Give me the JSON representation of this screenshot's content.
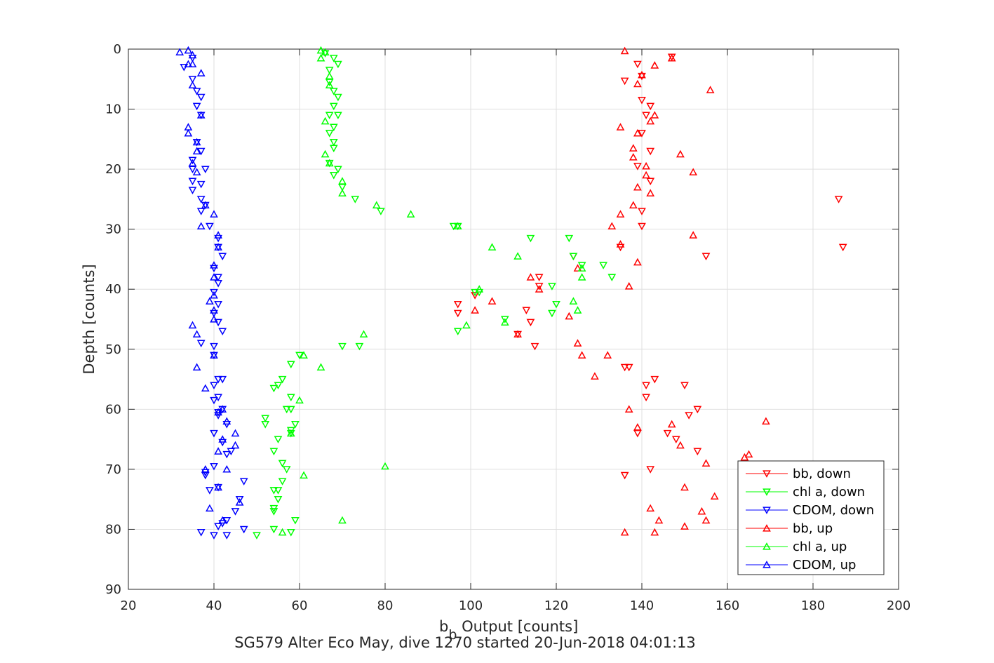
{
  "chart_data": {
    "type": "scatter",
    "xlabel_main": "b",
    "xlabel_sub": "b",
    "xlabel_rest": " Output [counts]",
    "ylabel": "Depth [counts]",
    "caption": "SG579 Alter Eco May, dive 1270 started 20-Jun-2018 04:01:13",
    "xlim": [
      20,
      200
    ],
    "ylim": [
      0,
      90
    ],
    "y_reversed": true,
    "xticks": [
      20,
      40,
      60,
      80,
      100,
      120,
      140,
      160,
      180,
      200
    ],
    "yticks": [
      0,
      10,
      20,
      30,
      40,
      50,
      60,
      70,
      80,
      90
    ],
    "grid": true,
    "legend_position": "bottom-right",
    "series": [
      {
        "name": "bb, down",
        "color": "#ff0000",
        "marker": "triangle-down",
        "points": [
          [
            147,
            1.3
          ],
          [
            136,
            5.3
          ],
          [
            140,
            4.5
          ],
          [
            139,
            2.5
          ],
          [
            140,
            8.5
          ],
          [
            142,
            9.5
          ],
          [
            141,
            11
          ],
          [
            140,
            14
          ],
          [
            142,
            17
          ],
          [
            139,
            19.5
          ],
          [
            142,
            22
          ],
          [
            140,
            27
          ],
          [
            140,
            29.5
          ],
          [
            186,
            25
          ],
          [
            187,
            33
          ],
          [
            155,
            34.5
          ],
          [
            135,
            33
          ],
          [
            124,
            34.5
          ],
          [
            116,
            38
          ],
          [
            116,
            39.5
          ],
          [
            113,
            43.5
          ],
          [
            114,
            45.5
          ],
          [
            111,
            47.5
          ],
          [
            115,
            49.5
          ],
          [
            97,
            42.5
          ],
          [
            97,
            44
          ],
          [
            101,
            41
          ],
          [
            137,
            53
          ],
          [
            136,
            53
          ],
          [
            141,
            56
          ],
          [
            141,
            58
          ],
          [
            139,
            64
          ],
          [
            142,
            70
          ],
          [
            136,
            71
          ],
          [
            146,
            64
          ],
          [
            148,
            65
          ],
          [
            153,
            67
          ],
          [
            151,
            61
          ],
          [
            153,
            60
          ],
          [
            150,
            56
          ],
          [
            143,
            55
          ]
        ]
      },
      {
        "name": "chl a, down",
        "color": "#00ff00",
        "marker": "triangle-down",
        "points": [
          [
            66,
            0.7
          ],
          [
            68,
            1.5
          ],
          [
            69,
            2.5
          ],
          [
            67,
            3.5
          ],
          [
            67,
            5.5
          ],
          [
            68,
            7
          ],
          [
            69,
            8
          ],
          [
            68,
            9.5
          ],
          [
            69,
            11
          ],
          [
            67,
            11
          ],
          [
            68,
            13
          ],
          [
            67,
            14
          ],
          [
            68,
            15.5
          ],
          [
            68,
            16.5
          ],
          [
            67,
            19
          ],
          [
            69,
            20
          ],
          [
            68,
            21
          ],
          [
            70,
            23
          ],
          [
            73,
            25
          ],
          [
            79,
            27
          ],
          [
            97,
            29.5
          ],
          [
            96,
            29.5
          ],
          [
            114,
            31.5
          ],
          [
            123,
            31.5
          ],
          [
            124,
            34.5
          ],
          [
            126,
            36
          ],
          [
            131,
            36
          ],
          [
            133,
            38
          ],
          [
            119,
            39.5
          ],
          [
            120,
            42.5
          ],
          [
            119,
            44
          ],
          [
            108,
            45
          ],
          [
            102,
            40.5
          ],
          [
            101,
            40.5
          ],
          [
            97,
            47
          ],
          [
            70,
            49.5
          ],
          [
            74,
            49.5
          ],
          [
            60,
            51
          ],
          [
            58,
            52.5
          ],
          [
            56,
            55
          ],
          [
            55,
            56
          ],
          [
            54,
            56.5
          ],
          [
            58,
            58
          ],
          [
            57,
            60
          ],
          [
            58,
            60
          ],
          [
            59,
            62.5
          ],
          [
            58,
            64
          ],
          [
            58,
            63.5
          ],
          [
            54,
            67
          ],
          [
            55,
            65
          ],
          [
            56,
            69
          ],
          [
            57,
            70
          ],
          [
            56,
            72
          ],
          [
            55,
            73.5
          ],
          [
            54,
            73.5
          ],
          [
            55,
            75
          ],
          [
            54,
            76.5
          ],
          [
            54,
            77
          ],
          [
            59,
            78.5
          ],
          [
            54,
            80
          ],
          [
            58,
            80.5
          ],
          [
            50,
            81
          ],
          [
            52,
            61.5
          ],
          [
            52,
            62.5
          ]
        ]
      },
      {
        "name": "CDOM, down",
        "color": "#0000ff",
        "marker": "triangle-down",
        "points": [
          [
            35,
            1.5
          ],
          [
            33,
            3
          ],
          [
            35,
            5
          ],
          [
            36,
            7
          ],
          [
            37,
            8
          ],
          [
            36,
            9.5
          ],
          [
            37,
            11
          ],
          [
            36,
            15.5
          ],
          [
            37,
            17
          ],
          [
            35,
            18.5
          ],
          [
            35,
            20
          ],
          [
            38,
            20
          ],
          [
            35,
            22
          ],
          [
            37,
            22.5
          ],
          [
            35,
            23.5
          ],
          [
            37,
            25
          ],
          [
            38,
            26
          ],
          [
            37,
            27
          ],
          [
            39,
            29.5
          ],
          [
            41,
            31.5
          ],
          [
            41,
            33
          ],
          [
            42,
            34.5
          ],
          [
            40,
            36.5
          ],
          [
            41,
            38
          ],
          [
            41,
            39
          ],
          [
            40,
            40.5
          ],
          [
            41,
            42.5
          ],
          [
            40,
            44
          ],
          [
            41,
            45.5
          ],
          [
            42,
            47
          ],
          [
            37,
            49
          ],
          [
            40,
            49.5
          ],
          [
            40,
            51
          ],
          [
            41,
            55
          ],
          [
            42,
            55
          ],
          [
            40,
            56
          ],
          [
            41,
            58
          ],
          [
            40,
            58.5
          ],
          [
            42,
            60
          ],
          [
            41,
            60.5
          ],
          [
            41,
            61
          ],
          [
            43,
            62.5
          ],
          [
            40,
            64
          ],
          [
            42,
            65.5
          ],
          [
            44,
            67
          ],
          [
            43,
            67.5
          ],
          [
            40,
            69.5
          ],
          [
            38,
            70.5
          ],
          [
            38,
            71
          ],
          [
            47,
            72
          ],
          [
            39,
            73.5
          ],
          [
            41,
            73
          ],
          [
            46,
            75
          ],
          [
            45,
            77
          ],
          [
            43,
            78.5
          ],
          [
            42,
            79
          ],
          [
            41,
            79.5
          ],
          [
            37,
            80.5
          ],
          [
            40,
            81
          ],
          [
            43,
            81
          ],
          [
            47,
            80
          ]
        ]
      },
      {
        "name": "bb, up",
        "color": "#ff0000",
        "marker": "triangle-up",
        "points": [
          [
            136,
            0.3
          ],
          [
            147,
            1.5
          ],
          [
            143,
            2.7
          ],
          [
            140,
            4.3
          ],
          [
            139,
            5.8
          ],
          [
            156,
            6.8
          ],
          [
            143,
            11
          ],
          [
            142,
            12
          ],
          [
            135,
            13
          ],
          [
            139,
            14
          ],
          [
            149,
            17.5
          ],
          [
            138,
            16.5
          ],
          [
            138,
            18
          ],
          [
            141,
            19.5
          ],
          [
            152,
            20.5
          ],
          [
            141,
            21
          ],
          [
            139,
            23
          ],
          [
            142,
            24
          ],
          [
            138,
            26
          ],
          [
            135,
            27.5
          ],
          [
            133,
            29.5
          ],
          [
            152,
            31
          ],
          [
            135,
            32.5
          ],
          [
            139,
            35.5
          ],
          [
            137,
            39.5
          ],
          [
            125,
            36.5
          ],
          [
            114,
            38
          ],
          [
            116,
            40
          ],
          [
            105,
            42
          ],
          [
            101,
            43.5
          ],
          [
            111,
            47.5
          ],
          [
            123,
            44.5
          ],
          [
            125,
            49
          ],
          [
            126,
            51
          ],
          [
            132,
            51
          ],
          [
            129,
            54.5
          ],
          [
            137,
            60
          ],
          [
            139,
            63
          ],
          [
            147,
            62.5
          ],
          [
            149,
            66
          ],
          [
            155,
            69
          ],
          [
            165,
            67.5
          ],
          [
            164,
            68
          ],
          [
            169,
            62
          ],
          [
            150,
            73
          ],
          [
            157,
            74.5
          ],
          [
            154,
            77
          ],
          [
            155,
            78.5
          ],
          [
            142,
            76.5
          ],
          [
            144,
            78.5
          ],
          [
            150,
            79.5
          ],
          [
            143,
            80.5
          ],
          [
            136,
            80.5
          ]
        ]
      },
      {
        "name": "chl a, up",
        "color": "#00ff00",
        "marker": "triangle-up",
        "points": [
          [
            65,
            0.2
          ],
          [
            66,
            0.5
          ],
          [
            65,
            1.5
          ],
          [
            67,
            4.5
          ],
          [
            67,
            6
          ],
          [
            66,
            12
          ],
          [
            66,
            17.5
          ],
          [
            67,
            19
          ],
          [
            70,
            22
          ],
          [
            70,
            24
          ],
          [
            78,
            26
          ],
          [
            86,
            27.5
          ],
          [
            97,
            29.5
          ],
          [
            105,
            33
          ],
          [
            111,
            34.5
          ],
          [
            126,
            36.5
          ],
          [
            126,
            38
          ],
          [
            124,
            42
          ],
          [
            125,
            43.5
          ],
          [
            102,
            40
          ],
          [
            108,
            45.5
          ],
          [
            99,
            46
          ],
          [
            75,
            47.5
          ],
          [
            61,
            51
          ],
          [
            65,
            53
          ],
          [
            60,
            58.5
          ],
          [
            58,
            64
          ],
          [
            61,
            71
          ],
          [
            80,
            69.5
          ],
          [
            70,
            78.5
          ],
          [
            56,
            80.5
          ]
        ]
      },
      {
        "name": "CDOM, up",
        "color": "#0000ff",
        "marker": "triangle-up",
        "points": [
          [
            32,
            0.5
          ],
          [
            34,
            0.2
          ],
          [
            35,
            1
          ],
          [
            35,
            2.5
          ],
          [
            34,
            2.5
          ],
          [
            37,
            4
          ],
          [
            35,
            6
          ],
          [
            37,
            11
          ],
          [
            34,
            13
          ],
          [
            34,
            14
          ],
          [
            36,
            15.5
          ],
          [
            36,
            17
          ],
          [
            35,
            19
          ],
          [
            36,
            20.5
          ],
          [
            38,
            26
          ],
          [
            40,
            27.5
          ],
          [
            37,
            29.5
          ],
          [
            41,
            31
          ],
          [
            41,
            33
          ],
          [
            40,
            36
          ],
          [
            40,
            38
          ],
          [
            40,
            41
          ],
          [
            39,
            42
          ],
          [
            40,
            43.5
          ],
          [
            40,
            45
          ],
          [
            35,
            46
          ],
          [
            36,
            47.5
          ],
          [
            40,
            51
          ],
          [
            36,
            53
          ],
          [
            38,
            56.5
          ],
          [
            41,
            60.5
          ],
          [
            42,
            60
          ],
          [
            43,
            62
          ],
          [
            45,
            64
          ],
          [
            42,
            65
          ],
          [
            45,
            66
          ],
          [
            41,
            67
          ],
          [
            38,
            70
          ],
          [
            43,
            70
          ],
          [
            41,
            73
          ],
          [
            46,
            75.5
          ],
          [
            39,
            76.5
          ],
          [
            42,
            78.5
          ]
        ]
      }
    ]
  }
}
